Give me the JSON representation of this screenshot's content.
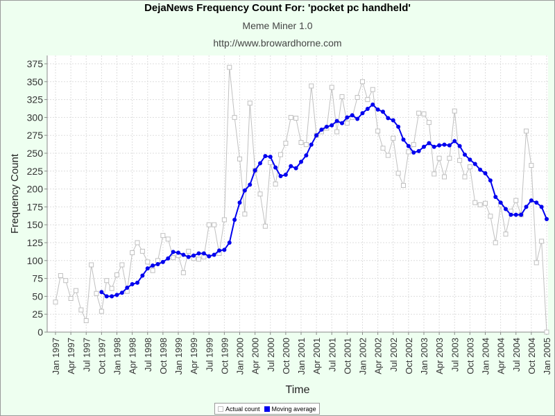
{
  "chart_data": {
    "type": "line",
    "title": "DejaNews Frequency Count For: 'pocket pc handheld'",
    "subtitle": "Meme Miner 1.0",
    "url": "http://www.browardhorne.com",
    "xlabel": "Time",
    "ylabel": "Frequency Count",
    "ylim": [
      0,
      375
    ],
    "yticks": [
      0,
      25,
      50,
      75,
      100,
      125,
      150,
      175,
      200,
      225,
      250,
      275,
      300,
      325,
      350,
      375
    ],
    "x_start": "1997-01",
    "x_end": "2005-01",
    "xtick_labels": [
      "Jan 1997",
      "Apr 1997",
      "Jul 1997",
      "Oct 1997",
      "Jan 1998",
      "Apr 1998",
      "Jul 1998",
      "Oct 1998",
      "Jan 1999",
      "Apr 1999",
      "Jul 1999",
      "Oct 1999",
      "Jan 2000",
      "Apr 2000",
      "Jul 2000",
      "Oct 2000",
      "Jan 2001",
      "Apr 2001",
      "Jul 2001",
      "Oct 2001",
      "Jan 2002",
      "Apr 2002",
      "Jul 2002",
      "Oct 2002",
      "Jan 2003",
      "Apr 2003",
      "Jul 2003",
      "Oct 2003",
      "Jan 2004",
      "Apr 2004",
      "Jul 2004",
      "Oct 2004",
      "Jan 2005"
    ],
    "grid": true,
    "legend_position": "bottom-center",
    "series": [
      {
        "name": "Actual count",
        "color": "#c0c0c0",
        "marker": "open-square",
        "values": [
          42,
          79,
          72,
          47,
          58,
          31,
          16,
          94,
          54,
          29,
          72,
          61,
          80,
          94,
          57,
          111,
          125,
          113,
          98,
          86,
          100,
          135,
          130,
          104,
          107,
          83,
          113,
          103,
          102,
          105,
          150,
          150,
          110,
          157,
          370,
          300,
          242,
          165,
          320,
          226,
          193,
          148,
          237,
          207,
          248,
          264,
          300,
          299,
          265,
          262,
          344,
          275,
          280,
          285,
          342,
          280,
          329,
          292,
          300,
          328,
          350,
          325,
          339,
          281,
          257,
          247,
          271,
          222,
          205,
          252,
          262,
          306,
          305,
          293,
          221,
          243,
          217,
          243,
          309,
          240,
          217,
          231,
          181,
          178,
          180,
          162,
          125,
          178,
          137,
          169,
          184,
          164,
          281,
          233,
          97,
          127,
          0
        ],
        "start": "1997-01"
      },
      {
        "name": "Moving average",
        "color": "#0000ee",
        "marker": "filled-circle",
        "values": [
          56,
          50,
          50,
          52,
          55,
          62,
          67,
          69,
          79,
          89,
          93,
          95,
          98,
          103,
          112,
          111,
          108,
          105,
          107,
          110,
          110,
          106,
          108,
          114,
          115,
          125,
          157,
          181,
          198,
          206,
          226,
          236,
          246,
          245,
          230,
          218,
          220,
          232,
          229,
          238,
          247,
          262,
          275,
          283,
          287,
          289,
          295,
          292,
          300,
          303,
          298,
          306,
          312,
          318,
          311,
          308,
          299,
          296,
          287,
          269,
          260,
          251,
          253,
          259,
          264,
          259,
          261,
          262,
          261,
          267,
          260,
          248,
          241,
          235,
          227,
          222,
          212,
          189,
          181,
          172,
          164,
          164,
          164,
          175,
          184,
          181,
          175,
          158
        ],
        "start": "1997-10"
      }
    ]
  }
}
